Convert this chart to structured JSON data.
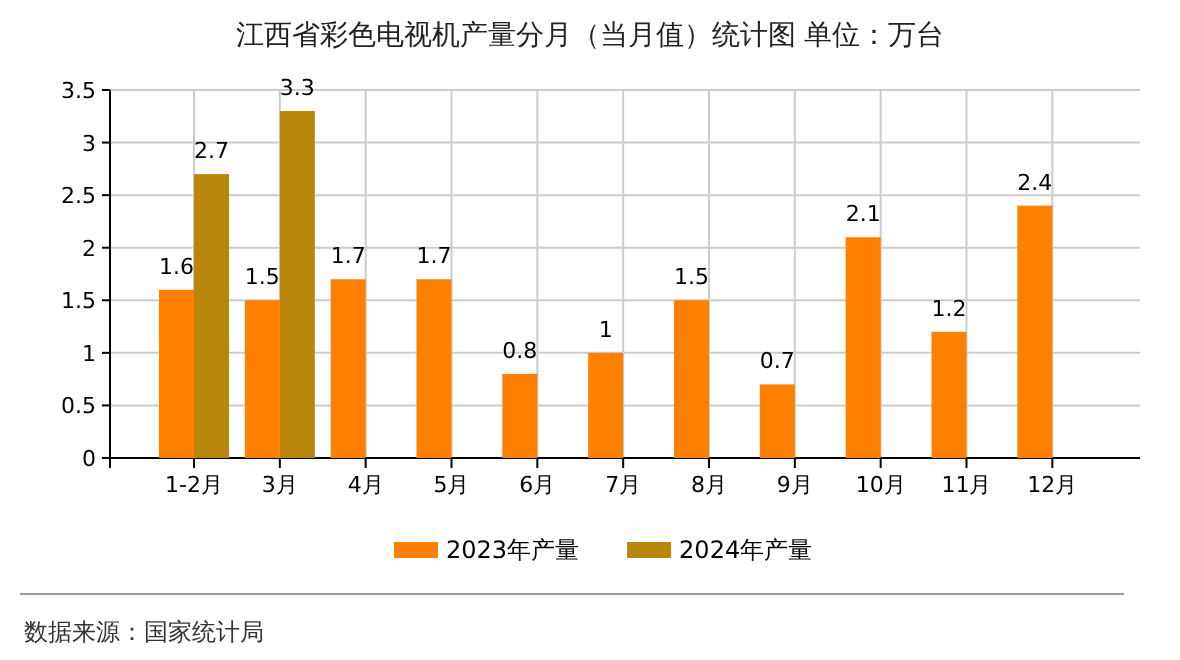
{
  "chart_data": {
    "type": "bar",
    "title": "江西省彩色电视机产量分月（当月值）统计图 单位：万台",
    "categories": [
      null,
      "1-2月",
      "3月",
      "4月",
      "5月",
      "6月",
      "7月",
      "8月",
      "9月",
      "10月",
      "11月",
      "12月"
    ],
    "series": [
      {
        "name": "2023年产量",
        "color": "#ff8000",
        "values": [
          null,
          1.6,
          1.5,
          1.7,
          1.7,
          0.8,
          1,
          1.5,
          0.7,
          2.1,
          1.2,
          2.4
        ]
      },
      {
        "name": "2024年产量",
        "color": "#b8860b",
        "values": [
          null,
          2.7,
          3.3,
          null,
          null,
          null,
          null,
          null,
          null,
          null,
          null,
          null
        ]
      }
    ],
    "ylim": [
      0,
      3.5
    ],
    "yticks": [
      0,
      0.5,
      1,
      1.5,
      2,
      2.5,
      3,
      3.5
    ],
    "grid": true,
    "legend": "bottom",
    "data_labels": true,
    "annotations": [
      "数据来源：国家统计局"
    ]
  }
}
